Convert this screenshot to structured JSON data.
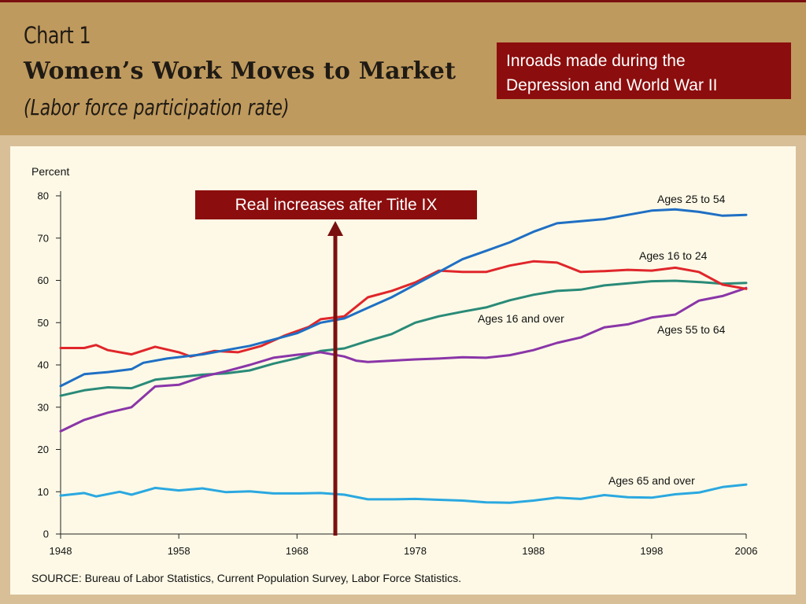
{
  "header": {
    "chart_number": "Chart 1",
    "title": "Women’s Work Moves to Market",
    "subtitle": "(Labor force participation rate)"
  },
  "callout": {
    "line1": "Inroads made during the",
    "line2": "Depression and World War II"
  },
  "annotation": {
    "label": "Real increases after Title IX",
    "year": 1971,
    "color": "#7a1010"
  },
  "source": "SOURCE: Bureau of Labor Statistics, Current Population Survey, Labor Force Statistics.",
  "colors": {
    "header_bg": "#bf9a5e",
    "page_bg": "#d8bf98",
    "panel_bg": "#fdf9e6",
    "accent": "#8c0d0d"
  },
  "chart_data": {
    "type": "line",
    "ylabel": "Percent",
    "xlabel": "",
    "xlim": [
      1948,
      2006
    ],
    "ylim": [
      0,
      80
    ],
    "x_ticks": [
      1948,
      1958,
      1968,
      1978,
      1988,
      1998,
      2006
    ],
    "y_ticks": [
      0,
      10,
      20,
      30,
      40,
      50,
      60,
      70,
      80
    ],
    "grid": false,
    "series": [
      {
        "name": "Ages 25 to 54",
        "color": "#1f6fc4",
        "points": [
          [
            1948,
            35
          ],
          [
            1950,
            37.8
          ],
          [
            1952,
            38.3
          ],
          [
            1954,
            39
          ],
          [
            1955,
            40.5
          ],
          [
            1957,
            41.5
          ],
          [
            1960,
            42.5
          ],
          [
            1962,
            43.5
          ],
          [
            1964,
            44.5
          ],
          [
            1966,
            46
          ],
          [
            1968,
            47.5
          ],
          [
            1970,
            50
          ],
          [
            1972,
            51
          ],
          [
            1974,
            53.5
          ],
          [
            1976,
            56
          ],
          [
            1978,
            59
          ],
          [
            1980,
            62
          ],
          [
            1982,
            65
          ],
          [
            1984,
            67
          ],
          [
            1986,
            69
          ],
          [
            1988,
            71.5
          ],
          [
            1990,
            73.5
          ],
          [
            1992,
            74
          ],
          [
            1994,
            74.5
          ],
          [
            1996,
            75.5
          ],
          [
            1998,
            76.5
          ],
          [
            2000,
            76.8
          ],
          [
            2002,
            76.2
          ],
          [
            2004,
            75.3
          ],
          [
            2006,
            75.5
          ]
        ]
      },
      {
        "name": "Ages 16 to 24",
        "color": "#e0262b",
        "points": [
          [
            1948,
            44
          ],
          [
            1950,
            44
          ],
          [
            1951,
            44.7
          ],
          [
            1952,
            43.5
          ],
          [
            1954,
            42.5
          ],
          [
            1956,
            44.3
          ],
          [
            1958,
            43
          ],
          [
            1959,
            42
          ],
          [
            1961,
            43.3
          ],
          [
            1963,
            43
          ],
          [
            1965,
            44.5
          ],
          [
            1967,
            47
          ],
          [
            1969,
            49
          ],
          [
            1970,
            50.8
          ],
          [
            1972,
            51.5
          ],
          [
            1974,
            56
          ],
          [
            1976,
            57.5
          ],
          [
            1978,
            59.5
          ],
          [
            1980,
            62.3
          ],
          [
            1982,
            62
          ],
          [
            1984,
            62
          ],
          [
            1986,
            63.5
          ],
          [
            1988,
            64.5
          ],
          [
            1990,
            64.2
          ],
          [
            1992,
            62
          ],
          [
            1994,
            62.2
          ],
          [
            1996,
            62.5
          ],
          [
            1998,
            62.3
          ],
          [
            2000,
            63
          ],
          [
            2002,
            62
          ],
          [
            2004,
            59
          ],
          [
            2006,
            58
          ]
        ]
      },
      {
        "name": "Ages 16 and over",
        "color": "#2a8a78",
        "points": [
          [
            1948,
            32.7
          ],
          [
            1950,
            34
          ],
          [
            1952,
            34.7
          ],
          [
            1954,
            34.5
          ],
          [
            1956,
            36.5
          ],
          [
            1958,
            37.1
          ],
          [
            1960,
            37.7
          ],
          [
            1962,
            38
          ],
          [
            1964,
            38.7
          ],
          [
            1966,
            40.3
          ],
          [
            1968,
            41.6
          ],
          [
            1970,
            43.3
          ],
          [
            1972,
            43.9
          ],
          [
            1974,
            45.7
          ],
          [
            1976,
            47.3
          ],
          [
            1978,
            50
          ],
          [
            1980,
            51.5
          ],
          [
            1982,
            52.6
          ],
          [
            1984,
            53.6
          ],
          [
            1986,
            55.3
          ],
          [
            1988,
            56.6
          ],
          [
            1990,
            57.5
          ],
          [
            1992,
            57.8
          ],
          [
            1994,
            58.8
          ],
          [
            1996,
            59.3
          ],
          [
            1998,
            59.8
          ],
          [
            2000,
            59.9
          ],
          [
            2002,
            59.6
          ],
          [
            2004,
            59.2
          ],
          [
            2006,
            59.4
          ]
        ]
      },
      {
        "name": "Ages 55 to 64",
        "color": "#8a35a8",
        "points": [
          [
            1948,
            24.3
          ],
          [
            1950,
            27
          ],
          [
            1952,
            28.7
          ],
          [
            1954,
            30
          ],
          [
            1956,
            34.9
          ],
          [
            1958,
            35.3
          ],
          [
            1960,
            37.2
          ],
          [
            1962,
            38.5
          ],
          [
            1964,
            40
          ],
          [
            1966,
            41.7
          ],
          [
            1968,
            42.4
          ],
          [
            1970,
            43
          ],
          [
            1972,
            42
          ],
          [
            1973,
            41
          ],
          [
            1974,
            40.7
          ],
          [
            1976,
            41
          ],
          [
            1978,
            41.3
          ],
          [
            1980,
            41.5
          ],
          [
            1982,
            41.8
          ],
          [
            1984,
            41.7
          ],
          [
            1986,
            42.3
          ],
          [
            1988,
            43.5
          ],
          [
            1990,
            45.2
          ],
          [
            1992,
            46.5
          ],
          [
            1994,
            48.9
          ],
          [
            1996,
            49.6
          ],
          [
            1998,
            51.2
          ],
          [
            2000,
            51.9
          ],
          [
            2002,
            55.2
          ],
          [
            2004,
            56.3
          ],
          [
            2006,
            58.2
          ]
        ]
      },
      {
        "name": "Ages 65 and over",
        "color": "#2aa8e0",
        "points": [
          [
            1948,
            9.1
          ],
          [
            1950,
            9.7
          ],
          [
            1951,
            8.9
          ],
          [
            1953,
            10
          ],
          [
            1954,
            9.3
          ],
          [
            1956,
            10.9
          ],
          [
            1958,
            10.3
          ],
          [
            1960,
            10.8
          ],
          [
            1962,
            9.9
          ],
          [
            1964,
            10.1
          ],
          [
            1966,
            9.6
          ],
          [
            1968,
            9.6
          ],
          [
            1970,
            9.7
          ],
          [
            1972,
            9.3
          ],
          [
            1974,
            8.2
          ],
          [
            1976,
            8.2
          ],
          [
            1978,
            8.3
          ],
          [
            1980,
            8.1
          ],
          [
            1982,
            7.9
          ],
          [
            1984,
            7.5
          ],
          [
            1986,
            7.4
          ],
          [
            1988,
            7.9
          ],
          [
            1990,
            8.6
          ],
          [
            1992,
            8.3
          ],
          [
            1994,
            9.2
          ],
          [
            1996,
            8.7
          ],
          [
            1998,
            8.6
          ],
          [
            2000,
            9.4
          ],
          [
            2002,
            9.8
          ],
          [
            2004,
            11.1
          ],
          [
            2006,
            11.7
          ]
        ]
      }
    ]
  }
}
